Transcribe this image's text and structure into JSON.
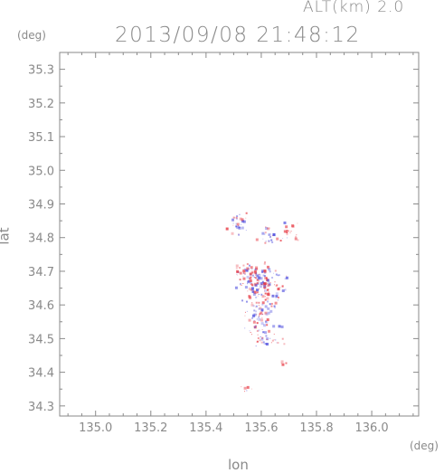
{
  "header": {
    "altitude_label": "ALT(km) 2.0",
    "timestamp": "2013/09/08 21:48:12",
    "lat_unit": "(deg)",
    "lon_unit": "(deg)"
  },
  "axes": {
    "xlabel": "lon",
    "ylabel": "lat",
    "xlim": [
      134.87,
      136.17
    ],
    "ylim": [
      34.27,
      35.35
    ],
    "xticks": [
      135.0,
      135.2,
      135.4,
      135.6,
      135.8,
      136.0
    ],
    "xtick_labels": [
      "135.0",
      "135.2",
      "135.4",
      "135.6",
      "135.8",
      "136.0"
    ],
    "yticks": [
      34.3,
      34.4,
      34.5,
      34.6,
      34.7,
      34.8,
      34.9,
      35.0,
      35.1,
      35.2,
      35.3
    ],
    "ytick_labels": [
      "34.3",
      "34.4",
      "34.5",
      "34.6",
      "34.7",
      "34.8",
      "34.9",
      "35.0",
      "35.1",
      "35.2",
      "35.3"
    ]
  },
  "colors": {
    "positive": "#e8404a",
    "negative": "#5a5ae0",
    "axis": "#8a8a8a"
  },
  "chart_data": {
    "type": "scatter",
    "title": "2013/09/08 21:48:12",
    "xlabel": "lon",
    "ylabel": "lat",
    "xlim": [
      134.87,
      136.17
    ],
    "ylim": [
      34.27,
      35.35
    ],
    "clusters": [
      {
        "lon": 135.51,
        "lat": 34.84,
        "spread_lon": 0.03,
        "spread_lat": 0.03,
        "count": 30,
        "pos_ratio": 0.3
      },
      {
        "lon": 135.62,
        "lat": 34.81,
        "spread_lon": 0.03,
        "spread_lat": 0.02,
        "count": 25,
        "pos_ratio": 0.4
      },
      {
        "lon": 135.7,
        "lat": 34.82,
        "spread_lon": 0.03,
        "spread_lat": 0.03,
        "count": 20,
        "pos_ratio": 0.85
      },
      {
        "lon": 135.55,
        "lat": 34.7,
        "spread_lon": 0.04,
        "spread_lat": 0.02,
        "count": 40,
        "pos_ratio": 0.5
      },
      {
        "lon": 135.6,
        "lat": 34.66,
        "spread_lon": 0.07,
        "spread_lat": 0.04,
        "count": 140,
        "pos_ratio": 0.5
      },
      {
        "lon": 135.6,
        "lat": 34.57,
        "spread_lon": 0.06,
        "spread_lat": 0.04,
        "count": 80,
        "pos_ratio": 0.45
      },
      {
        "lon": 135.62,
        "lat": 34.5,
        "spread_lon": 0.04,
        "spread_lat": 0.02,
        "count": 30,
        "pos_ratio": 0.5
      },
      {
        "lon": 135.68,
        "lat": 34.43,
        "spread_lon": 0.01,
        "spread_lat": 0.01,
        "count": 4,
        "pos_ratio": 1.0
      },
      {
        "lon": 135.55,
        "lat": 34.35,
        "spread_lon": 0.02,
        "spread_lat": 0.01,
        "count": 6,
        "pos_ratio": 0.8
      }
    ]
  }
}
